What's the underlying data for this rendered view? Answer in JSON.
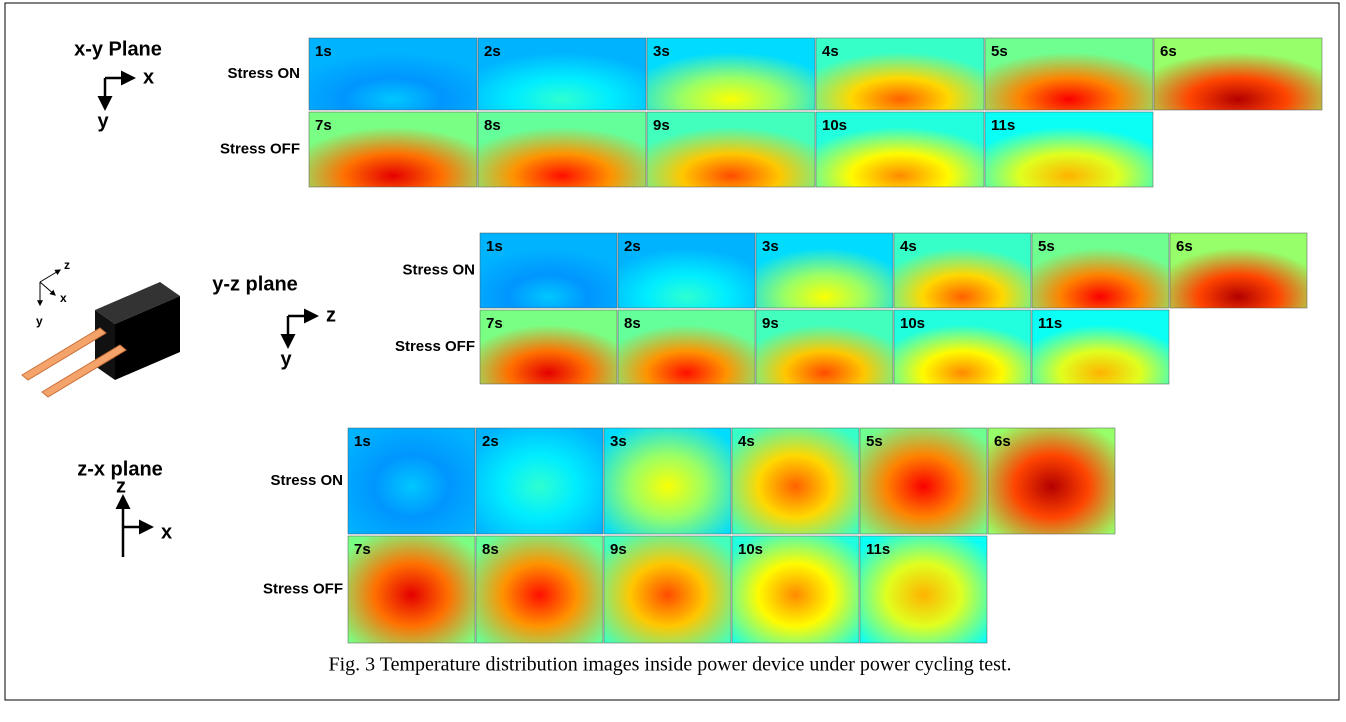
{
  "panels": [
    {
      "title": "x-y Plane",
      "axes": [
        "x",
        "y"
      ],
      "rows": [
        {
          "label": "Stress ON",
          "frames": [
            "1s",
            "2s",
            "3s",
            "4s",
            "5s",
            "6s"
          ]
        },
        {
          "label": "Stress OFF",
          "frames": [
            "7s",
            "8s",
            "9s",
            "10s",
            "11s"
          ]
        }
      ]
    },
    {
      "title": "y-z plane",
      "axes": [
        "z",
        "y"
      ],
      "rows": [
        {
          "label": "Stress ON",
          "frames": [
            "1s",
            "2s",
            "3s",
            "4s",
            "5s",
            "6s"
          ]
        },
        {
          "label": "Stress OFF",
          "frames": [
            "7s",
            "8s",
            "9s",
            "10s",
            "11s"
          ]
        }
      ]
    },
    {
      "title": "z-x plane",
      "axes": [
        "x",
        "z"
      ],
      "rows": [
        {
          "label": "Stress ON",
          "frames": [
            "1s",
            "2s",
            "3s",
            "4s",
            "5s",
            "6s"
          ]
        },
        {
          "label": "Stress OFF",
          "frames": [
            "7s",
            "8s",
            "9s",
            "10s",
            "11s"
          ]
        }
      ]
    }
  ],
  "device_axes": [
    "z",
    "x",
    "y"
  ],
  "caption": "Fig. 3 Temperature distribution images inside power device under power cycling test."
}
